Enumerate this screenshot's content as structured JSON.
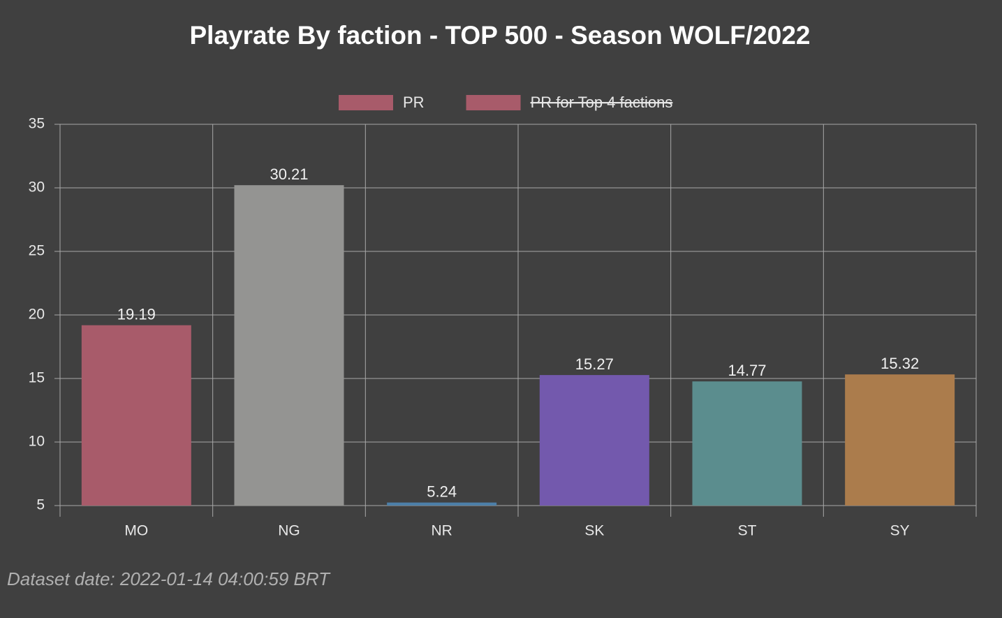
{
  "chart_data": {
    "type": "bar",
    "title": "Playrate By faction - TOP 500 - Season WOLF/2022",
    "categories": [
      "MO",
      "NG",
      "NR",
      "SK",
      "ST",
      "SY"
    ],
    "series": [
      {
        "name": "PR",
        "color": "#a85b6a",
        "colors": [
          "#a85b6a",
          "#949492",
          "#4d7fa8",
          "#7359ad",
          "#5b8d8e",
          "#ab7c4c"
        ],
        "values": [
          19.19,
          30.21,
          5.24,
          15.27,
          14.77,
          15.32
        ]
      },
      {
        "name": "PR for Top 4 factions",
        "color": "#a85b6a",
        "hidden": true
      }
    ],
    "ylim": [
      5,
      35
    ],
    "yticks": [
      5,
      10,
      15,
      20,
      25,
      30,
      35
    ],
    "grid": true,
    "legend": "top",
    "footer": "Dataset date: 2022-01-14 04:00:59 BRT"
  }
}
